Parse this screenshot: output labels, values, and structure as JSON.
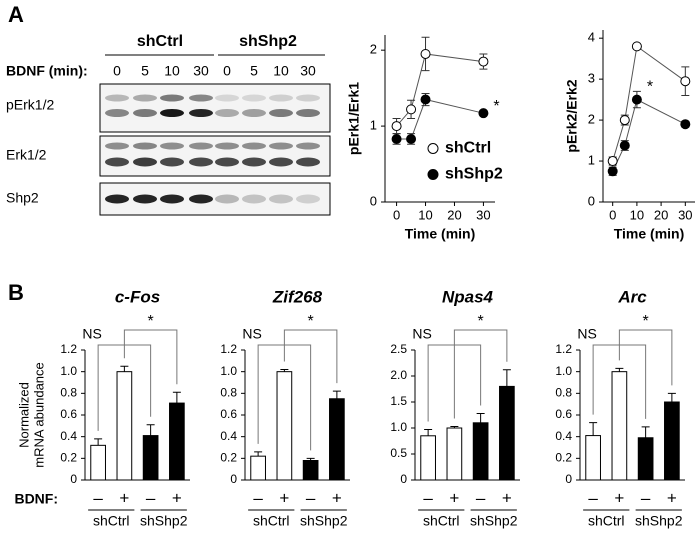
{
  "panel_labels": [
    "A",
    "B"
  ],
  "blot": {
    "groups": [
      "shCtrl",
      "shShp2"
    ],
    "bdnf_label": "BDNF (min):",
    "times": [
      "0",
      "5",
      "10",
      "30",
      "0",
      "5",
      "10",
      "30"
    ],
    "rows": [
      "pErk1/2",
      "Erk1/2",
      "Shp2"
    ]
  },
  "bdnf_label": "BDNF:",
  "chart_data": [
    {
      "type": "line",
      "ylabel": "pErk1/Erk1",
      "xlabel": "Time (min)",
      "x": [
        0,
        5,
        10,
        30
      ],
      "xlim": [
        -4,
        34
      ],
      "xticks": [
        0,
        10,
        20,
        30
      ],
      "ylim": [
        0,
        2.2
      ],
      "yticks": [
        0,
        1,
        2
      ],
      "legend": "right",
      "series": [
        {
          "name": "shCtrl",
          "color": "#ffffff",
          "values": [
            1.0,
            1.22,
            1.95,
            1.85
          ],
          "errors": [
            0.1,
            0.12,
            0.22,
            0.1
          ]
        },
        {
          "name": "shShp2",
          "color": "#000000",
          "values": [
            0.83,
            0.83,
            1.35,
            1.17
          ],
          "errors": [
            0.07,
            0.07,
            0.08,
            0.03
          ]
        }
      ],
      "annotations": [
        {
          "text": "*",
          "x": 30
        }
      ]
    },
    {
      "type": "line",
      "ylabel": "pErk2/Erk2",
      "xlabel": "Time (min)",
      "x": [
        0,
        5,
        10,
        30
      ],
      "xlim": [
        -4,
        34
      ],
      "xticks": [
        0,
        10,
        20,
        30
      ],
      "ylim": [
        0,
        4.2
      ],
      "yticks": [
        0,
        1,
        2,
        3,
        4
      ],
      "series": [
        {
          "color": "#ffffff",
          "values": [
            1.0,
            2.0,
            3.8,
            2.95
          ],
          "errors": [
            0.1,
            0.12,
            0.05,
            0.35
          ]
        },
        {
          "color": "#000000",
          "values": [
            0.75,
            1.38,
            2.5,
            1.9
          ],
          "errors": [
            0.1,
            0.12,
            0.2,
            0.07
          ]
        }
      ],
      "annotations": [
        {
          "text": "*",
          "x": 10
        }
      ]
    },
    {
      "type": "bar",
      "title": "c-Fos",
      "ylabel": [
        "Normalized",
        "mRNA abundance"
      ],
      "categories": [
        "–",
        "+",
        "–",
        "+"
      ],
      "groups": [
        "shCtrl",
        "shShp2"
      ],
      "values": [
        0.32,
        1.0,
        0.41,
        0.71
      ],
      "errors": [
        0.06,
        0.05,
        0.1,
        0.1
      ],
      "colors": [
        "#ffffff",
        "#ffffff",
        "#000000",
        "#000000"
      ],
      "ylim": [
        0,
        1.2
      ],
      "yticks": [
        0,
        0.2,
        0.4,
        0.6,
        0.8,
        {
          "value": 1,
          "label": "1.0"
        },
        1.2
      ],
      "annotations": [
        "NS",
        "*"
      ]
    },
    {
      "type": "bar",
      "title": "Zif268",
      "categories": [
        "–",
        "+",
        "–",
        "+"
      ],
      "groups": [
        "shCtrl",
        "shShp2"
      ],
      "values": [
        0.22,
        1.0,
        0.18,
        0.75
      ],
      "errors": [
        0.04,
        0.02,
        0.02,
        0.07
      ],
      "colors": [
        "#ffffff",
        "#ffffff",
        "#000000",
        "#000000"
      ],
      "ylim": [
        0,
        1.2
      ],
      "yticks": [
        0,
        0.2,
        0.4,
        0.6,
        0.8,
        {
          "value": 1,
          "label": "1.0"
        },
        1.2
      ],
      "annotations": [
        "NS",
        "*"
      ]
    },
    {
      "type": "bar",
      "title": "Npas4",
      "categories": [
        "–",
        "+",
        "–",
        "+"
      ],
      "groups": [
        "shCtrl",
        "shShp2"
      ],
      "values": [
        0.85,
        1.0,
        1.1,
        1.8
      ],
      "errors": [
        0.12,
        0.03,
        0.18,
        0.32
      ],
      "colors": [
        "#ffffff",
        "#ffffff",
        "#000000",
        "#000000"
      ],
      "ylim": [
        0,
        2.5
      ],
      "yticks": [
        0,
        0.5,
        {
          "value": 1,
          "label": "1.0"
        },
        1.5,
        {
          "value": 2,
          "label": "2.0"
        },
        2.5
      ],
      "annotations": [
        "NS",
        "*"
      ]
    },
    {
      "type": "bar",
      "title": "Arc",
      "categories": [
        "–",
        "+",
        "–",
        "+"
      ],
      "groups": [
        "shCtrl",
        "shShp2"
      ],
      "values": [
        0.41,
        1.0,
        0.39,
        0.72
      ],
      "errors": [
        0.12,
        0.03,
        0.1,
        0.08
      ],
      "colors": [
        "#ffffff",
        "#ffffff",
        "#000000",
        "#000000"
      ],
      "ylim": [
        0,
        1.2
      ],
      "yticks": [
        0,
        0.2,
        0.4,
        0.6,
        0.8,
        {
          "value": 1,
          "label": "1.0"
        },
        1.2
      ],
      "annotations": [
        "NS",
        "*"
      ]
    }
  ]
}
